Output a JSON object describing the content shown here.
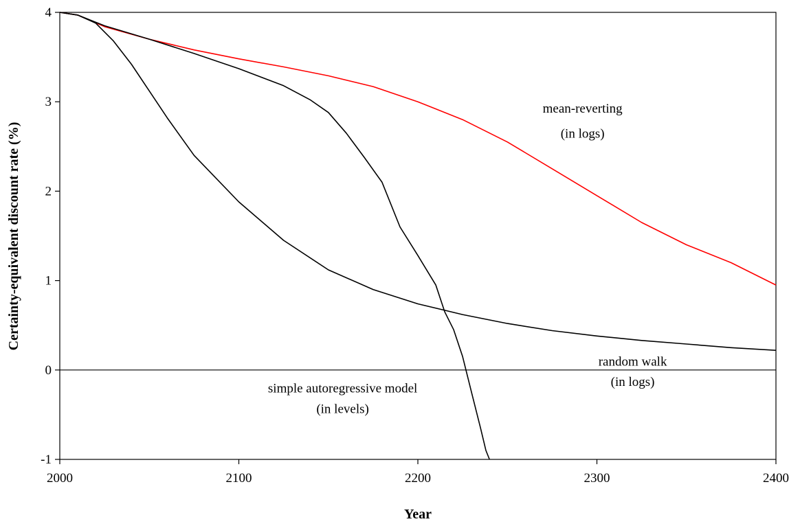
{
  "chart_data": {
    "type": "line",
    "title": "",
    "xlabel": "Year",
    "ylabel": "Certainty-equivalent discount rate (%)",
    "xlim": [
      2000,
      2400
    ],
    "ylim": [
      -1,
      4
    ],
    "x_ticks": [
      "2000",
      "2100",
      "2200",
      "2300",
      "2400"
    ],
    "y_ticks": [
      "-1",
      "0",
      "1",
      "2",
      "3",
      "4"
    ],
    "grid": false,
    "legend": "none",
    "series": [
      {
        "color": "#ff0000",
        "x": [
          2000,
          2010,
          2025,
          2050,
          2075,
          2100,
          2125,
          2150,
          2175,
          2200,
          2225,
          2250,
          2275,
          2300,
          2325,
          2350,
          2375,
          2400
        ],
        "y": [
          4.0,
          3.97,
          3.84,
          3.7,
          3.58,
          3.48,
          3.39,
          3.29,
          3.17,
          3.0,
          2.8,
          2.55,
          2.25,
          1.95,
          1.65,
          1.4,
          1.2,
          0.95
        ]
      },
      {
        "color": "#000000",
        "x": [
          2000,
          2010,
          2020,
          2030,
          2040,
          2050,
          2060,
          2075,
          2100,
          2125,
          2150,
          2175,
          2200,
          2225,
          2250,
          2275,
          2300,
          2325,
          2350,
          2375,
          2400
        ],
        "y": [
          4.0,
          3.97,
          3.88,
          3.68,
          3.42,
          3.12,
          2.82,
          2.4,
          1.88,
          1.45,
          1.12,
          0.9,
          0.74,
          0.62,
          0.52,
          0.44,
          0.38,
          0.33,
          0.29,
          0.25,
          0.22
        ]
      },
      {
        "color": "#000000",
        "x": [
          2000,
          2010,
          2025,
          2050,
          2075,
          2100,
          2125,
          2140,
          2150,
          2160,
          2170,
          2180,
          2190,
          2200,
          2210,
          2215,
          2220,
          2225,
          2230,
          2235,
          2238,
          2240
        ],
        "y": [
          4.0,
          3.97,
          3.85,
          3.7,
          3.54,
          3.37,
          3.18,
          3.02,
          2.88,
          2.65,
          2.38,
          2.1,
          1.6,
          1.28,
          0.95,
          0.65,
          0.45,
          0.15,
          -0.25,
          -0.65,
          -0.9,
          -1.0
        ]
      }
    ],
    "annotations": [
      {
        "text": "mean-reverting",
        "x": 2292,
        "y": 2.88
      },
      {
        "text": "(in logs)",
        "x": 2292,
        "y": 2.6
      },
      {
        "text": "random walk",
        "x": 2320,
        "y": 0.05
      },
      {
        "text": "(in logs)",
        "x": 2320,
        "y": -0.18
      },
      {
        "text": "simple autoregressive model",
        "x": 2158,
        "y": -0.25
      },
      {
        "text": "(in levels)",
        "x": 2158,
        "y": -0.48
      }
    ]
  }
}
